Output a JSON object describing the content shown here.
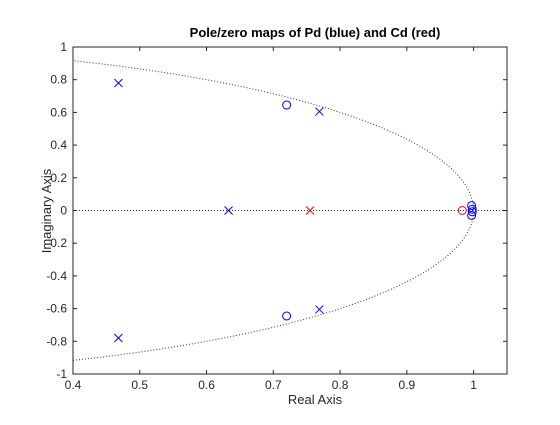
{
  "chart_data": {
    "type": "scatter",
    "title": "Pole/zero maps of Pd (blue) and Cd (red)",
    "xlabel": "Real Axis",
    "ylabel": "Imaginary Axis",
    "xlim": [
      0.4,
      1.05
    ],
    "ylim": [
      -1,
      1
    ],
    "xticks": [
      0.4,
      0.5,
      0.6,
      0.7,
      0.8,
      0.9,
      1
    ],
    "xtick_labels": [
      "0.4",
      "0.5",
      "0.6",
      "0.7",
      "0.8",
      "0.9",
      "1"
    ],
    "yticks": [
      -1,
      -0.8,
      -0.6,
      -0.4,
      -0.2,
      0,
      0.2,
      0.4,
      0.6,
      0.8,
      1
    ],
    "ytick_labels": [
      "-1",
      "-0.8",
      "-0.6",
      "-0.4",
      "-0.2",
      "0",
      "0.2",
      "0.4",
      "0.6",
      "0.8",
      "1"
    ],
    "grid": false,
    "reference_curves": [
      "real-axis-line",
      "unit-circle"
    ],
    "series": [
      {
        "marker": "x",
        "color": "#0000ff",
        "x": [
          0.468,
          0.468,
          0.633,
          0.769,
          0.769
        ],
        "y": [
          0.78,
          -0.78,
          0.0,
          0.605,
          -0.605
        ]
      },
      {
        "marker": "o",
        "color": "#0000ff",
        "x": [
          0.72,
          0.72,
          0.997,
          0.997,
          0.998,
          0.998
        ],
        "y": [
          0.645,
          -0.645,
          0.03,
          -0.03,
          0.008,
          -0.008
        ]
      },
      {
        "marker": "x",
        "color": "#ff0000",
        "x": [
          0.755
        ],
        "y": [
          0.0
        ]
      },
      {
        "marker": "o",
        "color": "#ff0000",
        "x": [
          0.983
        ],
        "y": [
          0.0
        ]
      }
    ]
  }
}
